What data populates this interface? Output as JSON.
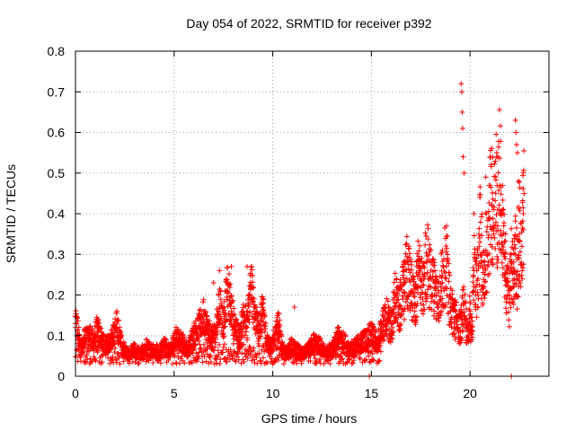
{
  "chart_data": {
    "type": "scatter",
    "title": "Day 054 of 2022, SRMTID for receiver p392",
    "xlabel": "GPS time / hours",
    "ylabel": "SRMTID / TECUs",
    "xlim": [
      0,
      24
    ],
    "ylim": [
      0,
      0.8
    ],
    "xticks": [
      0,
      5,
      10,
      15,
      20
    ],
    "yticks": [
      0,
      0.1,
      0.2,
      0.3,
      0.4,
      0.5,
      0.6,
      0.7,
      0.8
    ],
    "xtick_labels": [
      "0",
      "5",
      "10",
      "15",
      "20"
    ],
    "ytick_labels": [
      "0",
      "0.1",
      "0.2",
      "0.3",
      "0.4",
      "0.5",
      "0.6",
      "0.7",
      "0.8"
    ],
    "grid": true,
    "marker": "+",
    "color": "#ff0000",
    "series": [
      {
        "name": "SRMTID",
        "x": [
          0.0,
          0.1,
          0.2,
          0.3,
          0.5,
          0.7,
          0.9,
          1.1,
          1.3,
          1.5,
          1.7,
          1.9,
          2.1,
          2.3,
          2.5,
          2.7,
          3.0,
          3.3,
          3.6,
          3.9,
          4.2,
          4.5,
          4.8,
          5.1,
          5.4,
          5.7,
          6.0,
          6.3,
          6.5,
          6.7,
          6.9,
          7.1,
          7.3,
          7.5,
          7.7,
          7.9,
          8.1,
          8.3,
          8.5,
          8.7,
          8.9,
          9.1,
          9.3,
          9.5,
          9.7,
          9.9,
          10.1,
          10.3,
          10.5,
          10.7,
          10.9,
          11.2,
          11.5,
          11.8,
          12.1,
          12.4,
          12.7,
          13.0,
          13.3,
          13.6,
          13.9,
          14.2,
          14.5,
          14.8,
          15.0,
          15.3,
          15.6,
          15.8,
          16.0,
          16.2,
          16.4,
          16.6,
          16.8,
          17.0,
          17.2,
          17.4,
          17.6,
          17.8,
          18.0,
          18.2,
          18.4,
          18.6,
          18.8,
          19.0,
          19.2,
          19.4,
          19.5,
          19.6,
          19.7,
          19.8,
          19.9,
          20.0,
          20.1,
          20.2,
          20.3,
          20.4,
          20.5,
          20.6,
          20.7,
          20.8,
          20.9,
          21.0,
          21.1,
          21.2,
          21.3,
          21.4,
          21.5,
          21.6,
          21.7,
          21.8,
          21.9,
          22.0,
          22.1,
          22.2,
          22.3,
          22.4,
          22.5,
          22.6,
          22.7
        ],
        "y": [
          0.13,
          0.11,
          0.08,
          0.07,
          0.09,
          0.1,
          0.08,
          0.11,
          0.09,
          0.07,
          0.08,
          0.1,
          0.12,
          0.08,
          0.06,
          0.05,
          0.06,
          0.05,
          0.07,
          0.06,
          0.05,
          0.07,
          0.06,
          0.09,
          0.08,
          0.06,
          0.1,
          0.12,
          0.14,
          0.11,
          0.09,
          0.1,
          0.17,
          0.12,
          0.21,
          0.16,
          0.11,
          0.09,
          0.15,
          0.12,
          0.22,
          0.14,
          0.11,
          0.16,
          0.08,
          0.07,
          0.09,
          0.12,
          0.06,
          0.05,
          0.07,
          0.06,
          0.05,
          0.06,
          0.08,
          0.07,
          0.05,
          0.06,
          0.09,
          0.08,
          0.06,
          0.07,
          0.08,
          0.09,
          0.1,
          0.08,
          0.12,
          0.14,
          0.11,
          0.18,
          0.15,
          0.19,
          0.24,
          0.21,
          0.16,
          0.25,
          0.19,
          0.28,
          0.22,
          0.2,
          0.17,
          0.23,
          0.27,
          0.16,
          0.14,
          0.12,
          0.11,
          0.14,
          0.18,
          0.12,
          0.1,
          0.15,
          0.09,
          0.26,
          0.2,
          0.24,
          0.33,
          0.28,
          0.22,
          0.31,
          0.27,
          0.39,
          0.42,
          0.35,
          0.45,
          0.37,
          0.47,
          0.4,
          0.3,
          0.25,
          0.2,
          0.18,
          0.26,
          0.22,
          0.3,
          0.24,
          0.35,
          0.28,
          0.4
        ],
        "extra_points": [
          {
            "x": 19.55,
            "y": 0.72
          },
          {
            "x": 19.58,
            "y": 0.7
          },
          {
            "x": 19.6,
            "y": 0.65
          },
          {
            "x": 19.62,
            "y": 0.61
          },
          {
            "x": 19.65,
            "y": 0.54
          },
          {
            "x": 19.7,
            "y": 0.5
          },
          {
            "x": 22.3,
            "y": 0.63
          },
          {
            "x": 22.33,
            "y": 0.6
          },
          {
            "x": 22.36,
            "y": 0.57
          },
          {
            "x": 22.4,
            "y": 0.55
          },
          {
            "x": 22.45,
            "y": 0.48
          },
          {
            "x": 20.8,
            "y": 0.49
          },
          {
            "x": 21.0,
            "y": 0.47
          },
          {
            "x": 20.5,
            "y": 0.44
          },
          {
            "x": 20.2,
            "y": 0.4
          },
          {
            "x": 16.7,
            "y": 0.28
          },
          {
            "x": 17.3,
            "y": 0.27
          },
          {
            "x": 18.2,
            "y": 0.28
          },
          {
            "x": 7.0,
            "y": 0.23
          },
          {
            "x": 7.3,
            "y": 0.26
          },
          {
            "x": 7.9,
            "y": 0.27
          },
          {
            "x": 8.7,
            "y": 0.27
          },
          {
            "x": 9.1,
            "y": 0.17
          },
          {
            "x": 11.1,
            "y": 0.17
          },
          {
            "x": 14.9,
            "y": 0.0
          },
          {
            "x": 22.1,
            "y": 0.0
          }
        ]
      }
    ]
  }
}
